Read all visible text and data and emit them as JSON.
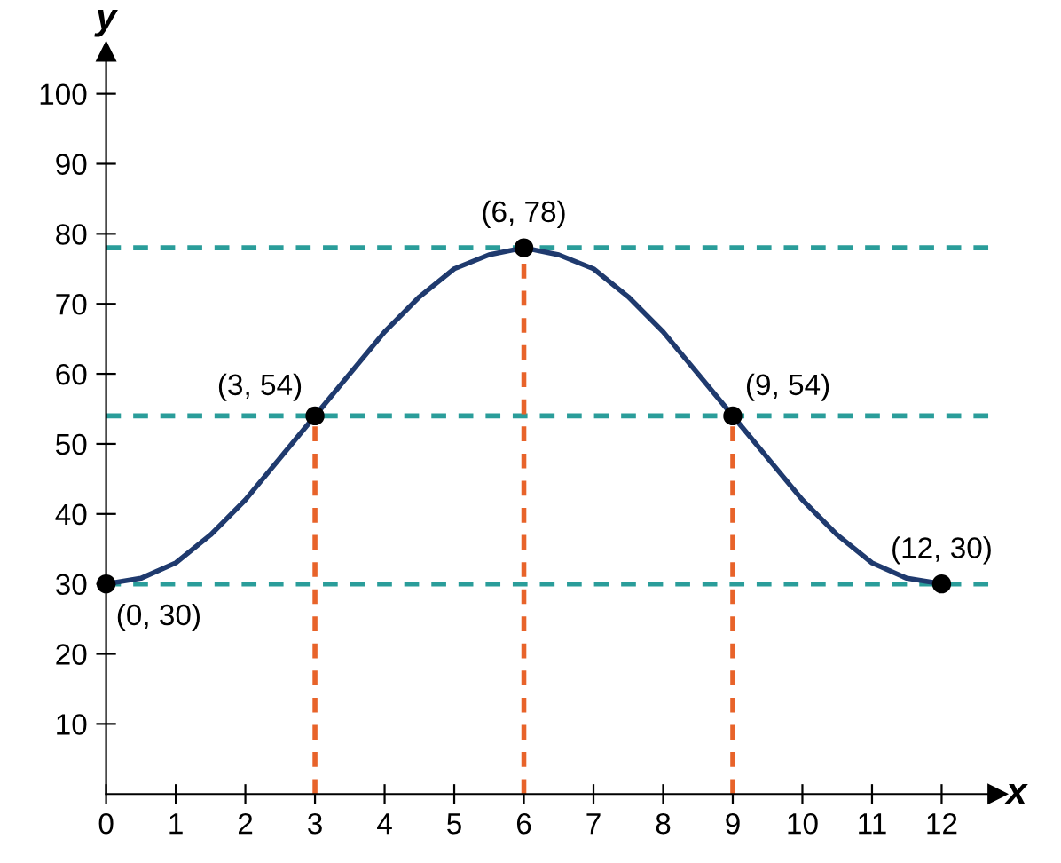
{
  "chart_data": {
    "type": "line",
    "xlabel": "x",
    "ylabel": "y",
    "xlim": [
      0,
      12.8
    ],
    "ylim": [
      0,
      106
    ],
    "xticks": [
      0,
      1,
      2,
      3,
      4,
      5,
      6,
      7,
      8,
      9,
      10,
      11,
      12
    ],
    "yticks": [
      10,
      20,
      30,
      40,
      50,
      60,
      70,
      80,
      90,
      100
    ],
    "grid": false,
    "series": [
      {
        "color": "#e8632a",
        "line_style": "dashed",
        "marker": "none",
        "x": [
          3,
          3
        ],
        "values": [
          0,
          54
        ]
      },
      {
        "color": "#e8632a",
        "line_style": "dashed",
        "marker": "none",
        "x": [
          6,
          6
        ],
        "values": [
          0,
          78
        ]
      },
      {
        "color": "#e8632a",
        "line_style": "dashed",
        "marker": "none",
        "x": [
          9,
          9
        ],
        "values": [
          0,
          54
        ]
      },
      {
        "color": "#1f3a6e",
        "line_style": "solid",
        "marker": "none",
        "x": [
          0,
          0.5,
          1,
          1.5,
          2,
          2.5,
          3,
          3.5,
          4,
          4.5,
          5,
          5.5,
          6,
          6.5,
          7,
          7.5,
          8,
          8.5,
          9,
          9.5,
          10,
          10.5,
          11,
          11.5,
          12
        ],
        "values": [
          30,
          30.8,
          33,
          37,
          42,
          48,
          54,
          60,
          66,
          71,
          75,
          77,
          78,
          77,
          75,
          71,
          66,
          60,
          54,
          48,
          42,
          37,
          33,
          30.8,
          30
        ]
      },
      {
        "type": "scatter",
        "color": "#000000",
        "marker": "circle",
        "x": [
          0,
          3,
          6,
          9,
          12
        ],
        "values": [
          30,
          54,
          78,
          54,
          30
        ]
      }
    ],
    "ref_lines": [
      {
        "axis": "y",
        "value": 30,
        "color": "#2a9d9a",
        "line_style": "dashed"
      },
      {
        "axis": "y",
        "value": 54,
        "color": "#2a9d9a",
        "line_style": "dashed"
      },
      {
        "axis": "y",
        "value": 78,
        "color": "#2a9d9a",
        "line_style": "dashed"
      }
    ],
    "annotations": [
      {
        "text": "(0, 30)",
        "x": 0,
        "y": 30
      },
      {
        "text": "(3, 54)",
        "x": 3,
        "y": 54
      },
      {
        "text": "(6, 78)",
        "x": 6,
        "y": 78
      },
      {
        "text": "(9, 54)",
        "x": 9,
        "y": 54
      },
      {
        "text": "(12, 30)",
        "x": 12,
        "y": 30
      }
    ]
  }
}
